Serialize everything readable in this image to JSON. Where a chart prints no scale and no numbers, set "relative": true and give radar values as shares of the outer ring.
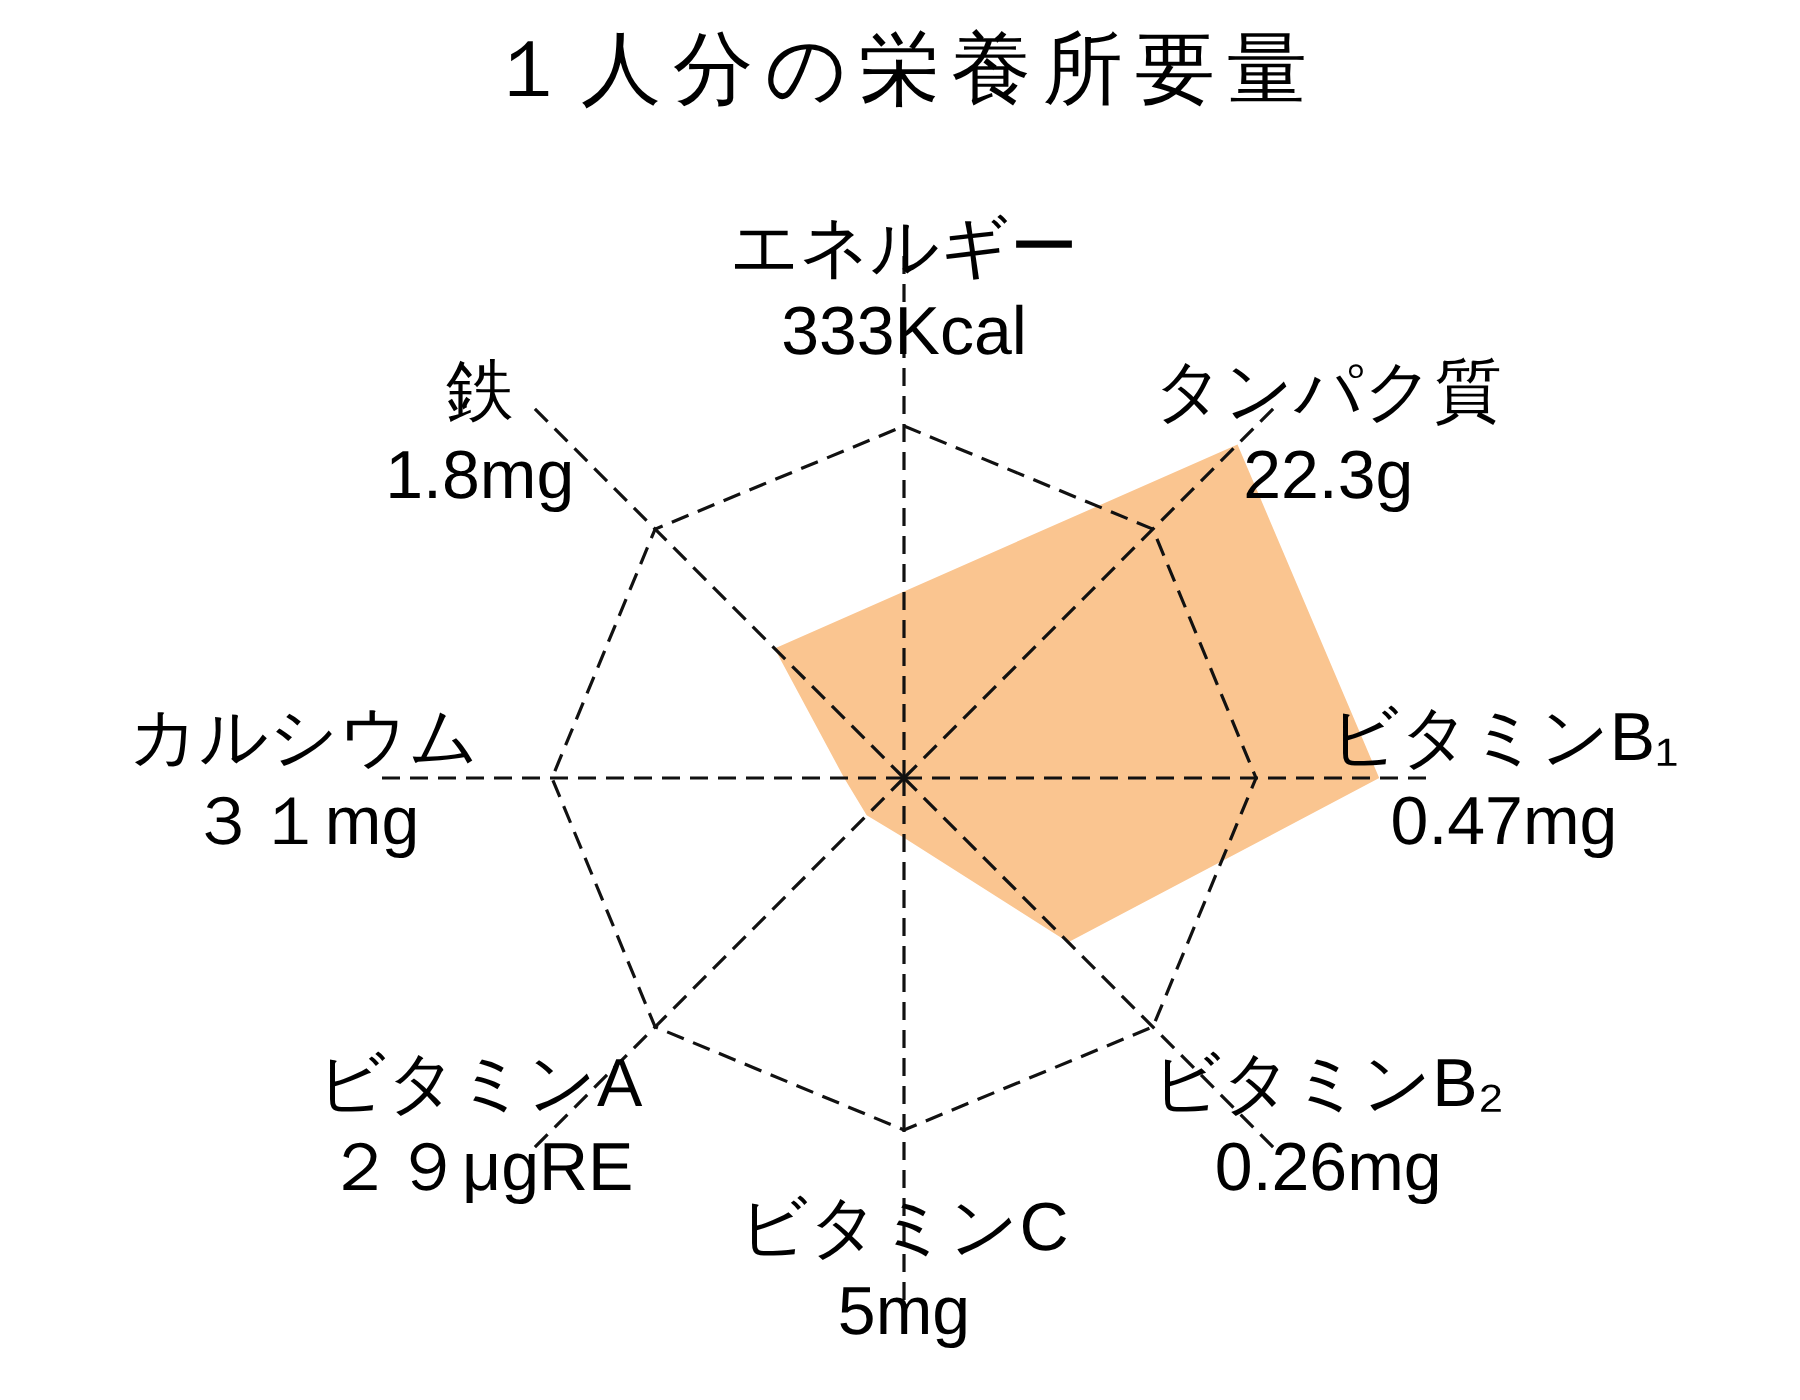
{
  "chart_data": {
    "type": "radar",
    "title": "１人分の栄養所要量",
    "relative": true,
    "grid": true,
    "categories": [
      "エネルギー\n333Kcal",
      "タンパク質\n22.3g",
      "ビタミンB₁\n0.47mg",
      "ビタミンB₂\n0.26mg",
      "ビタミンC\n5mg",
      "ビタミンA\n２９μgRE",
      "カルシウム３１mg",
      "鉄\n1.8mg"
    ],
    "series": [
      {
        "color": "#fac590",
        "values": [
          0.53,
          1.34,
          1.35,
          0.66,
          0.17,
          0.15,
          0.17,
          0.52
        ]
      }
    ]
  }
}
